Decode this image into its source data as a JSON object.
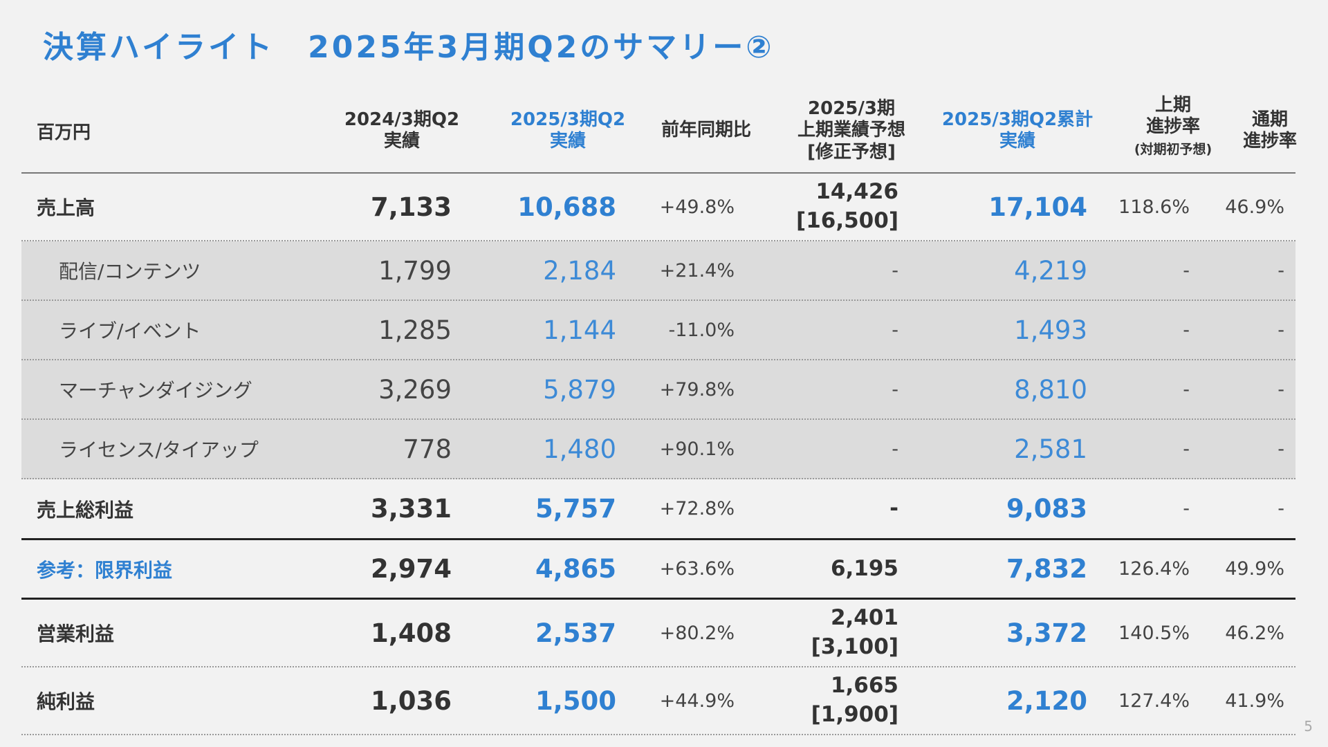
{
  "title": "決算ハイライト　2025年3月期Q2のサマリー②",
  "page_number": "5",
  "colors": {
    "accent": "#2f80d1",
    "segment_bg": "#dcdcdc",
    "background": "#f2f2f2"
  },
  "header": {
    "unit": "百万円",
    "c1": "2024/3期Q2\n実績",
    "c2": "2025/3期Q2\n実績",
    "c3": "前年同期比",
    "c4": "2025/3期\n上期業績予想\n[修正予想]",
    "c5": "2025/3期Q2累計\n実績",
    "c6": "上期\n進捗率",
    "c6_note": "(対期初予想)",
    "c7": "通期\n進捗率"
  },
  "rows": [
    {
      "label": "売上高",
      "prev": "7,133",
      "cur": "10,688",
      "yoy": "+49.8%",
      "forecast": "14,426\n[16,500]",
      "cum": "17,104",
      "h1": "118.6%",
      "fy": "46.9%"
    },
    {
      "label": "配信/コンテンツ",
      "prev": "1,799",
      "cur": "2,184",
      "yoy": "+21.4%",
      "forecast": "-",
      "cum": "4,219",
      "h1": "-",
      "fy": "-"
    },
    {
      "label": "ライブ/イベント",
      "prev": "1,285",
      "cur": "1,144",
      "yoy": "-11.0%",
      "forecast": "-",
      "cum": "1,493",
      "h1": "-",
      "fy": "-"
    },
    {
      "label": "マーチャンダイジング",
      "prev": "3,269",
      "cur": "5,879",
      "yoy": "+79.8%",
      "forecast": "-",
      "cum": "8,810",
      "h1": "-",
      "fy": "-"
    },
    {
      "label": "ライセンス/タイアップ",
      "prev": "778",
      "cur": "1,480",
      "yoy": "+90.1%",
      "forecast": "-",
      "cum": "2,581",
      "h1": "-",
      "fy": "-"
    },
    {
      "label": "売上総利益",
      "prev": "3,331",
      "cur": "5,757",
      "yoy": "+72.8%",
      "forecast": "-",
      "cum": "9,083",
      "h1": "-",
      "fy": "-"
    },
    {
      "label": "参考：限界利益",
      "prev": "2,974",
      "cur": "4,865",
      "yoy": "+63.6%",
      "forecast": "6,195",
      "cum": "7,832",
      "h1": "126.4%",
      "fy": "49.9%"
    },
    {
      "label": "営業利益",
      "prev": "1,408",
      "cur": "2,537",
      "yoy": "+80.2%",
      "forecast": "2,401\n[3,100]",
      "cum": "3,372",
      "h1": "140.5%",
      "fy": "46.2%"
    },
    {
      "label": "純利益",
      "prev": "1,036",
      "cur": "1,500",
      "yoy": "+44.9%",
      "forecast": "1,665\n[1,900]",
      "cum": "2,120",
      "h1": "127.4%",
      "fy": "41.9%"
    }
  ]
}
